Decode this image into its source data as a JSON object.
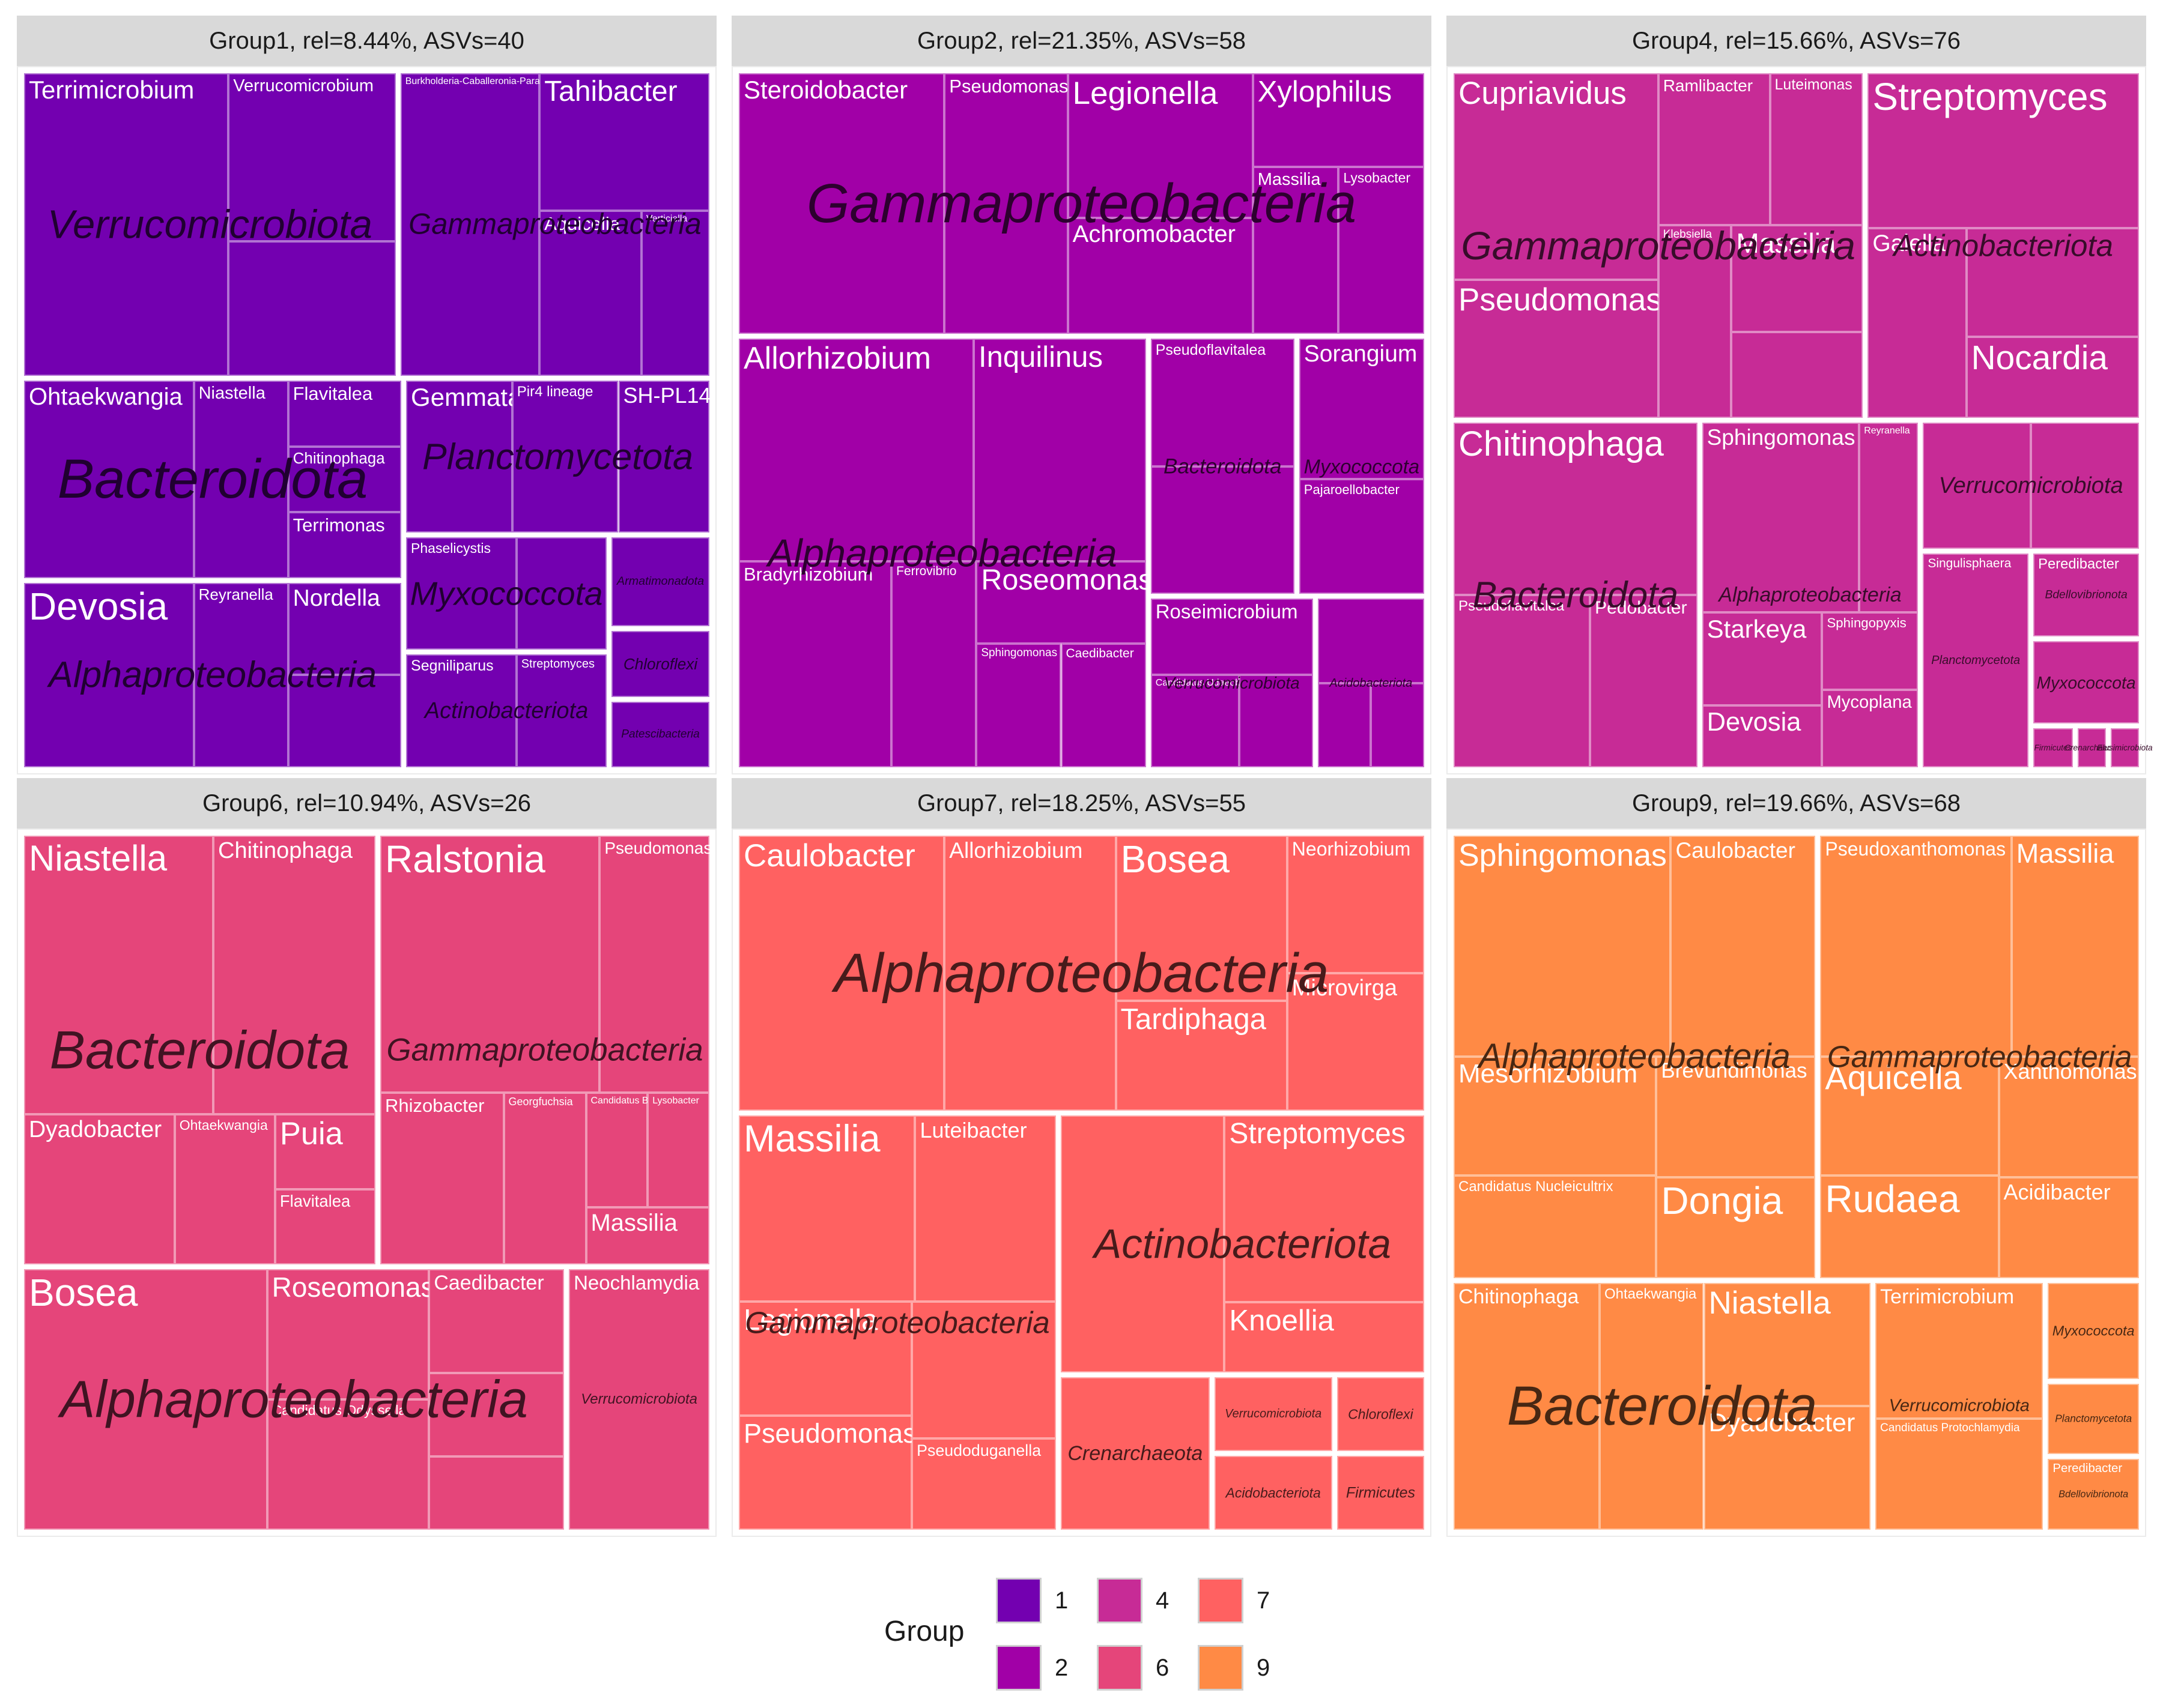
{
  "chart_data": {
    "type": "treemap",
    "facet_by": "Group",
    "legend": {
      "title": "Group",
      "placement": "bottom",
      "entries": [
        {
          "label": "1",
          "color": "#7300b0"
        },
        {
          "label": "2",
          "color": "#a100a7"
        },
        {
          "label": "4",
          "color": "#c72b96"
        },
        {
          "label": "6",
          "color": "#e5457a"
        },
        {
          "label": "7",
          "color": "#ff6161"
        },
        {
          "label": "9",
          "color": "#ff8a45"
        }
      ]
    },
    "panels": [
      {
        "title": "Group1, rel=8.44%, ASVs=40",
        "group": "1",
        "color": "#7300b0",
        "phyla": [
          {
            "name": "Verrucomicrobiota",
            "weight": 0.24,
            "genera": [
              [
                "Terrimicrobium",
                0.55
              ],
              [
                "Verrucomicrobium",
                0.25
              ],
              [
                "",
                0.2
              ]
            ]
          },
          {
            "name": "Gammaproteobacteria",
            "weight": 0.2,
            "genera": [
              [
                "Burkholderia-Caballeronia-Paraburkholderia",
                0.45
              ],
              [
                "Tahibacter",
                0.25
              ],
              [
                "Aquicella",
                0.18
              ],
              [
                "Verticiella",
                0.12
              ]
            ]
          },
          {
            "name": "Bacteroidota",
            "weight": 0.16,
            "genera": [
              [
                "Ohtaekwangia",
                0.45
              ],
              [
                "Niastella",
                0.25
              ],
              [
                "Flavitalea",
                0.1
              ],
              [
                "Chitinophaga",
                0.1
              ],
              [
                "Terrimonas",
                0.1
              ]
            ]
          },
          {
            "name": "Alphaproteobacteria",
            "weight": 0.15,
            "genera": [
              [
                "Devosia",
                0.45
              ],
              [
                "Reyranella",
                0.25
              ],
              [
                "Nordella",
                0.15
              ],
              [
                "",
                0.15
              ]
            ]
          },
          {
            "name": "Planctomycetota",
            "weight": 0.1,
            "genera": [
              [
                "Gemmata",
                0.35
              ],
              [
                "Pir4 lineage",
                0.35
              ],
              [
                "SH-PL14",
                0.3
              ]
            ]
          },
          {
            "name": "Myxococcota",
            "weight": 0.05,
            "genera": [
              [
                "Phaselicystis",
                0.55
              ],
              [
                "",
                0.45
              ]
            ]
          },
          {
            "name": "Actinobacteriota",
            "weight": 0.05,
            "genera": [
              [
                "Segniliparus",
                0.55
              ],
              [
                "Streptomyces",
                0.45
              ]
            ]
          },
          {
            "name": "Armatimonadota",
            "weight": 0.02,
            "genera": [
              [
                "",
                1
              ]
            ]
          },
          {
            "name": "Chloroflexi",
            "weight": 0.015,
            "genera": [
              [
                "",
                1
              ]
            ]
          },
          {
            "name": "Patescibacteria",
            "weight": 0.015,
            "genera": [
              [
                "",
                1
              ]
            ]
          }
        ]
      },
      {
        "title": "Group2, rel=21.35%, ASVs=58",
        "group": "2",
        "color": "#a100a7",
        "phyla": [
          {
            "name": "Alphaproteobacteria",
            "weight": 0.37,
            "genera": [
              [
                "Allorhizobium",
                0.3
              ],
              [
                "Inquilinus",
                0.22
              ],
              [
                "Bradyrhizobium",
                0.18
              ],
              [
                "Ferrovibrio",
                0.1
              ],
              [
                "Roseomonas",
                0.08
              ],
              [
                "Sphingomonas",
                0.06
              ],
              [
                "Caedibacter",
                0.06
              ]
            ]
          },
          {
            "name": "Gammaproteobacteria",
            "weight": 0.38,
            "genera": [
              [
                "Steroidobacter",
                0.3
              ],
              [
                "Pseudomonas",
                0.18
              ],
              [
                "Legionella",
                0.15
              ],
              [
                "Achromobacter",
                0.12
              ],
              [
                "Xylophilus",
                0.09
              ],
              [
                "Massilia",
                0.08
              ],
              [
                "Lysobacter",
                0.08
              ]
            ]
          },
          {
            "name": "Myxococcota",
            "weight": 0.07,
            "genera": [
              [
                "Sorangium",
                0.55
              ],
              [
                "Pajaroellobacter",
                0.45
              ]
            ]
          },
          {
            "name": "Verrucomicrobiota",
            "weight": 0.06,
            "genera": [
              [
                "Roseimicrobium",
                0.45
              ],
              [
                "Candidatus Udaeobacter",
                0.3
              ],
              [
                "",
                0.25
              ]
            ]
          },
          {
            "name": "Bacteroidota",
            "weight": 0.08,
            "genera": [
              [
                "Pseudoflavitalea",
                0.5
              ],
              [
                "",
                0.5
              ]
            ]
          },
          {
            "name": "Acidobacteriota",
            "weight": 0.04,
            "genera": [
              [
                "",
                0.5
              ],
              [
                "",
                0.25
              ],
              [
                "",
                0.25
              ]
            ]
          }
        ]
      },
      {
        "title": "Group4, rel=15.66%, ASVs=76",
        "group": "4",
        "color": "#c72b96",
        "phyla": [
          {
            "name": "Gammaproteobacteria",
            "weight": 0.3,
            "genera": [
              [
                "Cupriavidus",
                0.3
              ],
              [
                "Pseudomonas",
                0.2
              ],
              [
                "Ramlibacter",
                0.12
              ],
              [
                "Luteimonas",
                0.1
              ],
              [
                "Klebsiella",
                0.1
              ],
              [
                "Massilia",
                0.1
              ],
              [
                "",
                0.08
              ]
            ]
          },
          {
            "name": "Actinobacteriota",
            "weight": 0.2,
            "genera": [
              [
                "Streptomyces",
                0.45
              ],
              [
                "Gaiella",
                0.2
              ],
              [
                "Nocardia",
                0.15
              ],
              [
                "",
                0.2
              ]
            ]
          },
          {
            "name": "Bacteroidota",
            "weight": 0.18,
            "genera": [
              [
                "Chitinophaga",
                0.5
              ],
              [
                "Pseudoflavitalea",
                0.28
              ],
              [
                "Pedobacter",
                0.22
              ]
            ]
          },
          {
            "name": "Alphaproteobacteria",
            "weight": 0.16,
            "genera": [
              [
                "Sphingomonas",
                0.4
              ],
              [
                "Reyranella",
                0.15
              ],
              [
                "Starkeya",
                0.15
              ],
              [
                "Devosia",
                0.1
              ],
              [
                "Sphingopyxis",
                0.1
              ],
              [
                "Mycoplana",
                0.1
              ]
            ]
          },
          {
            "name": "Verrucomicrobiota",
            "weight": 0.06,
            "genera": [
              [
                "",
                0.5
              ],
              [
                "",
                0.5
              ]
            ]
          },
          {
            "name": "Planctomycetota",
            "weight": 0.05,
            "genera": [
              [
                "Singulisphaera",
                1
              ]
            ]
          },
          {
            "name": "Bdellovibrionota",
            "weight": 0.02,
            "genera": [
              [
                "Peredibacter",
                1
              ]
            ]
          },
          {
            "name": "Myxococcota",
            "weight": 0.02,
            "genera": [
              [
                "",
                1
              ]
            ]
          },
          {
            "name": "Firmicutes",
            "weight": 0.004,
            "genera": [
              [
                "",
                1
              ]
            ]
          },
          {
            "name": "Crenarchaeota",
            "weight": 0.003,
            "genera": [
              [
                "",
                1
              ]
            ]
          },
          {
            "name": "Elusimicrobiota",
            "weight": 0.003,
            "genera": [
              [
                "",
                1
              ]
            ]
          }
        ]
      },
      {
        "title": "Group6, rel=10.94%, ASVs=26",
        "group": "6",
        "color": "#e5457a",
        "phyla": [
          {
            "name": "Gammaproteobacteria",
            "weight": 0.3,
            "genera": [
              [
                "Ralstonia",
                0.4
              ],
              [
                "Pseudomonas",
                0.2
              ],
              [
                "Rhizobacter",
                0.15
              ],
              [
                "Georgfuchsia",
                0.1
              ],
              [
                "Candidatus Berkiella",
                0.05
              ],
              [
                "Lysobacter",
                0.05
              ],
              [
                "Massilia",
                0.05
              ]
            ]
          },
          {
            "name": "Bacteroidota",
            "weight": 0.32,
            "genera": [
              [
                "Niastella",
                0.35
              ],
              [
                "Chitinophaga",
                0.3
              ],
              [
                "Dyadobacter",
                0.15
              ],
              [
                "Ohtaekwangia",
                0.1
              ],
              [
                "Puia",
                0.05
              ],
              [
                "Flavitalea",
                0.05
              ]
            ]
          },
          {
            "name": "Alphaproteobacteria",
            "weight": 0.3,
            "genera": [
              [
                "Bosea",
                0.45
              ],
              [
                "Roseomonas",
                0.15
              ],
              [
                "Candidatus Odyssella",
                0.15
              ],
              [
                "Caedibacter",
                0.1
              ],
              [
                "",
                0.08
              ],
              [
                "",
                0.07
              ]
            ]
          },
          {
            "name": "Verrucomicrobiota",
            "weight": 0.08,
            "genera": [
              [
                "Neochlamydia",
                1
              ]
            ]
          }
        ]
      },
      {
        "title": "Group7, rel=18.25%, ASVs=55",
        "group": "7",
        "color": "#ff6161",
        "phyla": [
          {
            "name": "Alphaproteobacteria",
            "weight": 0.4,
            "genera": [
              [
                "Caulobacter",
                0.3
              ],
              [
                "Allorhizobium",
                0.25
              ],
              [
                "Bosea",
                0.15
              ],
              [
                "Tardiphaga",
                0.1
              ],
              [
                "Neorhizobium",
                0.1
              ],
              [
                "Microvirga",
                0.1
              ]
            ]
          },
          {
            "name": "Gammaproteobacteria",
            "weight": 0.28,
            "genera": [
              [
                "Massilia",
                0.25
              ],
              [
                "Luteibacter",
                0.2
              ],
              [
                "Legionella",
                0.15
              ],
              [
                "Pseudomonas",
                0.15
              ],
              [
                "Pseudoduganella",
                0.1
              ],
              [
                "",
                0.15
              ]
            ]
          },
          {
            "name": "Actinobacteriota",
            "weight": 0.2,
            "genera": [
              [
                "Streptomyces",
                0.4
              ],
              [
                "Knoellia",
                0.15
              ],
              [
                "",
                0.45
              ]
            ]
          },
          {
            "name": "Crenarchaeota",
            "weight": 0.05,
            "genera": [
              [
                "",
                1
              ]
            ]
          },
          {
            "name": "Verrucomicrobiota",
            "weight": 0.02,
            "genera": [
              [
                "",
                1
              ]
            ]
          },
          {
            "name": "Acidobacteriota",
            "weight": 0.02,
            "genera": [
              [
                "",
                1
              ]
            ]
          },
          {
            "name": "Chloroflexi",
            "weight": 0.015,
            "genera": [
              [
                "",
                1
              ]
            ]
          },
          {
            "name": "Firmicutes",
            "weight": 0.015,
            "genera": [
              [
                "",
                1
              ]
            ]
          }
        ]
      },
      {
        "title": "Group9, rel=19.66%, ASVs=68",
        "group": "9",
        "color": "#ff8a45",
        "phyla": [
          {
            "name": "Alphaproteobacteria",
            "weight": 0.34,
            "genera": [
              [
                "Sphingomonas",
                0.3
              ],
              [
                "Caulobacter",
                0.2
              ],
              [
                "Mesorhizobium",
                0.15
              ],
              [
                "Brevundimonas",
                0.12
              ],
              [
                "Dongia",
                0.1
              ],
              [
                "Candidatus Nucleicultrix",
                0.13
              ]
            ]
          },
          {
            "name": "Gammaproteobacteria",
            "weight": 0.3,
            "genera": [
              [
                "Pseudoxanthomonas",
                0.3
              ],
              [
                "Massilia",
                0.2
              ],
              [
                "Aquicella",
                0.15
              ],
              [
                "Xanthomonas",
                0.12
              ],
              [
                "Acidibacter",
                0.1
              ],
              [
                "Rudaea",
                0.13
              ]
            ]
          },
          {
            "name": "Bacteroidota",
            "weight": 0.22,
            "genera": [
              [
                "Chitinophaga",
                0.35
              ],
              [
                "Ohtaekwangia",
                0.25
              ],
              [
                "Niastella",
                0.2
              ],
              [
                "Dyadobacter",
                0.2
              ]
            ]
          },
          {
            "name": "Verrucomicrobiota",
            "weight": 0.09,
            "genera": [
              [
                "Terrimicrobium",
                0.55
              ],
              [
                "Candidatus Protochlamydia",
                0.45
              ]
            ]
          },
          {
            "name": "Myxococcota",
            "weight": 0.02,
            "genera": [
              [
                "",
                1
              ]
            ]
          },
          {
            "name": "Planctomycetota",
            "weight": 0.015,
            "genera": [
              [
                "",
                1
              ]
            ]
          },
          {
            "name": "Bdellovibrionota",
            "weight": 0.015,
            "genera": [
              [
                "Peredibacter",
                1
              ]
            ]
          }
        ]
      }
    ]
  }
}
